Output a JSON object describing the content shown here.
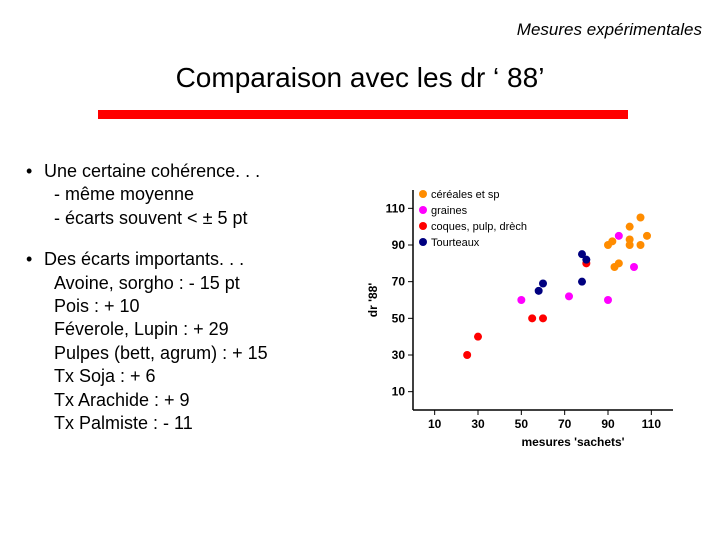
{
  "header": "Mesures expérimentales",
  "title": "Comparaison avec les dr ‘ 88’",
  "bullet1": {
    "main": "Une certaine cohérence. . .",
    "sub1": "- même moyenne",
    "sub2": "- écarts souvent < ± 5 pt"
  },
  "bullet2": {
    "main": "Des écarts importants. . .",
    "s1": "Avoine, sorgho : - 15 pt",
    "s2": "Pois : + 10",
    "s3": "Féverole, Lupin : + 29",
    "s4": "Pulpes (bett, agrum) : + 15",
    "s5": "Tx Soja : + 6",
    "s6": "Tx Arachide : + 9",
    "s7": "Tx Palmiste : - 11"
  },
  "chart": {
    "type": "scatter",
    "x_label": "mesures 'sachets'",
    "y_label": "dr '88'",
    "xlim": [
      0,
      120
    ],
    "ylim": [
      0,
      120
    ],
    "ticks": [
      10,
      30,
      50,
      70,
      90,
      110
    ],
    "background_color": "#ffffff",
    "axis_color": "#000000",
    "tick_fontsize": 12,
    "label_fontsize": 12,
    "marker_size": 4,
    "legend": {
      "items": [
        {
          "label": "céréales et sp",
          "color": "#ff8c00"
        },
        {
          "label": "graines",
          "color": "#ff00ff"
        },
        {
          "label": "coques, pulp, drèch",
          "color": "#ff0000"
        },
        {
          "label": "Tourteaux",
          "color": "#000080"
        }
      ],
      "position": "top-right",
      "fontsize": 11,
      "marker_size": 4
    },
    "series": [
      {
        "name": "céréales et sp",
        "color": "#ff8c00",
        "points": [
          [
            90,
            90
          ],
          [
            92,
            92
          ],
          [
            93,
            78
          ],
          [
            95,
            80
          ],
          [
            100,
            90
          ],
          [
            100,
            93
          ],
          [
            100,
            100
          ],
          [
            105,
            90
          ],
          [
            105,
            105
          ],
          [
            108,
            95
          ]
        ]
      },
      {
        "name": "graines",
        "color": "#ff00ff",
        "points": [
          [
            50,
            60
          ],
          [
            72,
            62
          ],
          [
            90,
            60
          ],
          [
            95,
            95
          ],
          [
            102,
            78
          ]
        ]
      },
      {
        "name": "coques pulp drech",
        "color": "#ff0000",
        "points": [
          [
            25,
            30
          ],
          [
            30,
            40
          ],
          [
            55,
            50
          ],
          [
            60,
            50
          ],
          [
            80,
            80
          ]
        ]
      },
      {
        "name": "tourteaux",
        "color": "#000080",
        "points": [
          [
            58,
            65
          ],
          [
            60,
            69
          ],
          [
            78,
            85
          ],
          [
            78,
            70
          ],
          [
            80,
            82
          ]
        ]
      }
    ]
  }
}
